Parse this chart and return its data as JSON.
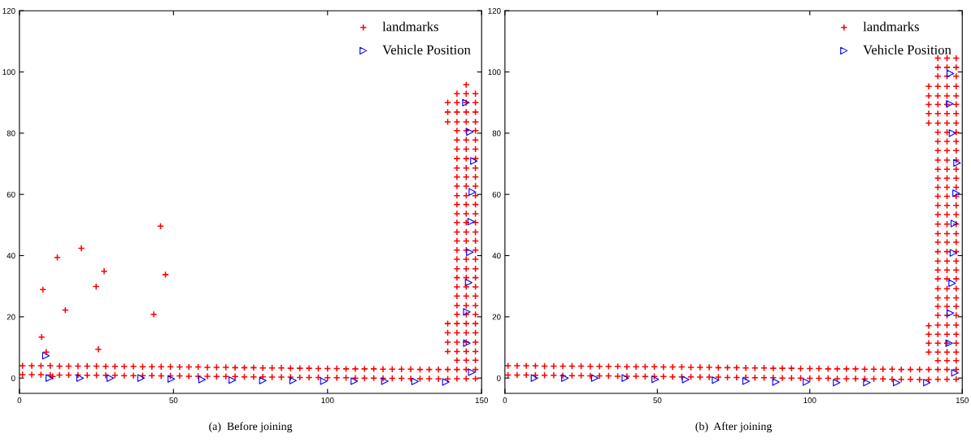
{
  "chart_data": [
    {
      "type": "scatter",
      "annotations": [
        "(a)  Before joining"
      ],
      "xlim": [
        0,
        150
      ],
      "ylim": [
        -5,
        120
      ],
      "xticks": [
        0,
        50,
        100,
        150
      ],
      "yticks": [
        0,
        20,
        40,
        60,
        80,
        100,
        120
      ],
      "grid": false,
      "legend": "top right",
      "series": [
        {
          "name": "landmarks",
          "color": "#ff0000",
          "marker": "cross",
          "x": [
            1,
            4,
            7,
            10,
            13,
            16,
            19,
            22,
            25,
            28,
            31,
            34,
            37,
            40,
            43,
            46,
            49,
            52,
            55,
            58,
            61,
            64,
            67,
            70,
            73,
            76,
            79,
            82,
            85,
            88,
            91,
            94,
            97,
            100,
            103,
            106,
            109,
            112,
            115,
            118,
            121,
            124,
            127,
            130,
            133,
            136,
            139,
            1,
            4,
            7,
            10,
            13,
            16,
            19,
            22,
            25,
            28,
            31,
            34,
            37,
            40,
            43,
            46,
            49,
            52,
            55,
            58,
            61,
            64,
            67,
            70,
            73,
            76,
            79,
            82,
            85,
            88,
            91,
            94,
            97,
            100,
            103,
            106,
            109,
            112,
            115,
            118,
            121,
            124,
            127,
            130,
            133,
            136,
            139,
            139,
            139,
            139,
            139,
            139,
            139,
            139,
            142,
            142,
            142,
            142,
            142,
            142,
            142,
            142,
            142,
            142,
            142,
            142,
            142,
            142,
            142,
            142,
            142,
            142,
            142,
            142,
            142,
            142,
            142,
            142,
            142,
            142,
            142,
            142,
            142,
            142,
            142,
            142,
            145,
            145,
            145,
            145,
            145,
            145,
            145,
            145,
            145,
            145,
            145,
            145,
            145,
            145,
            145,
            145,
            145,
            145,
            145,
            145,
            145,
            145,
            145,
            145,
            145,
            145,
            145,
            145,
            145,
            145,
            145,
            145,
            145,
            148,
            148,
            148,
            148,
            148,
            148,
            148,
            148,
            148,
            148,
            148,
            148,
            148,
            148,
            148,
            148,
            148,
            148,
            148,
            148,
            148,
            148,
            148,
            148,
            148,
            148,
            148,
            148,
            148,
            148,
            148,
            148,
            7.6,
            12.3,
            20.1,
            27.5,
            24.9,
            14.9,
            7.2,
            8.7,
            25.6,
            43.6,
            45.8,
            47.4,
            10.8
          ],
          "values": [
            4.0,
            4.0,
            4.0,
            4.0,
            3.9,
            3.9,
            3.9,
            3.9,
            3.9,
            3.8,
            3.8,
            3.8,
            3.8,
            3.7,
            3.7,
            3.7,
            3.7,
            3.6,
            3.6,
            3.6,
            3.5,
            3.5,
            3.5,
            3.4,
            3.4,
            3.4,
            3.3,
            3.3,
            3.3,
            3.2,
            3.2,
            3.2,
            3.1,
            3.1,
            3.1,
            3.0,
            3.0,
            3.0,
            3.0,
            2.9,
            2.9,
            2.9,
            2.9,
            2.8,
            2.8,
            2.8,
            2.8,
            1.1,
            1.1,
            1.1,
            1.0,
            1.0,
            1.0,
            1.0,
            0.9,
            0.9,
            0.9,
            0.9,
            0.8,
            0.8,
            0.8,
            0.8,
            0.7,
            0.7,
            0.7,
            0.6,
            0.6,
            0.6,
            0.5,
            0.5,
            0.5,
            0.4,
            0.4,
            0.4,
            0.3,
            0.3,
            0.3,
            0.2,
            0.2,
            0.2,
            0.1,
            0.1,
            0.1,
            0.0,
            0.0,
            0.0,
            -0.1,
            -0.1,
            -0.1,
            -0.2,
            -0.2,
            -0.2,
            -0.3,
            -0.3,
            8.7,
            11.7,
            14.8,
            17.8,
            83.7,
            86.9,
            90.0,
            -0.2,
            2.8,
            5.8,
            8.7,
            11.7,
            14.8,
            17.8,
            20.8,
            23.7,
            26.8,
            29.8,
            32.8,
            35.7,
            38.8,
            41.8,
            44.8,
            47.7,
            50.8,
            53.7,
            56.7,
            59.6,
            62.7,
            65.7,
            68.6,
            71.7,
            74.8,
            77.8,
            80.8,
            83.7,
            86.9,
            90.0,
            92.9,
            -0.2,
            2.8,
            5.8,
            8.7,
            11.7,
            14.8,
            17.8,
            20.8,
            23.7,
            26.8,
            29.8,
            32.8,
            35.7,
            38.8,
            41.8,
            44.8,
            47.7,
            50.8,
            53.7,
            56.7,
            59.6,
            62.7,
            65.7,
            68.6,
            71.7,
            74.8,
            77.8,
            80.8,
            83.7,
            86.9,
            90.0,
            92.9,
            95.8,
            -0.2,
            2.8,
            5.8,
            8.7,
            11.7,
            14.8,
            17.8,
            20.8,
            23.7,
            26.8,
            29.8,
            32.8,
            35.7,
            38.8,
            41.8,
            44.8,
            47.7,
            50.8,
            53.7,
            56.7,
            59.6,
            62.7,
            65.7,
            68.6,
            71.7,
            74.8,
            77.8,
            80.8,
            83.7,
            86.9,
            90.0,
            92.9,
            28.9,
            39.4,
            42.4,
            34.9,
            29.9,
            22.2,
            13.4,
            8.5,
            9.4,
            20.8,
            49.6,
            33.8,
            0.5
          ]
        },
        {
          "name": "Vehicle Position",
          "color": "#0000ff",
          "marker": "triangle",
          "x": [
            8.6,
            9.7,
            19.7,
            29.5,
            39.5,
            49.3,
            59.3,
            69.1,
            79.0,
            88.8,
            98.8,
            108.7,
            118.6,
            128.4,
            138.4,
            146.8,
            145.2,
            145.2,
            145.8,
            146.2,
            146.6,
            147.0,
            147.5,
            146.2,
            144.9
          ],
          "values": [
            7.3,
            0.0,
            0.0,
            0.0,
            0.0,
            -0.3,
            -0.5,
            -0.7,
            -0.8,
            -0.8,
            -1.0,
            -1.0,
            -1.0,
            -1.1,
            -1.3,
            1.9,
            11.4,
            21.6,
            31.2,
            41.1,
            51.1,
            60.8,
            70.9,
            80.4,
            90.0
          ]
        }
      ]
    },
    {
      "type": "scatter",
      "annotations": [
        "(b)  After joining"
      ],
      "xlim": [
        0,
        150
      ],
      "ylim": [
        -5,
        120
      ],
      "xticks": [
        0,
        50,
        100,
        150
      ],
      "yticks": [
        0,
        20,
        40,
        60,
        80,
        100,
        120
      ],
      "grid": false,
      "legend": "top right",
      "series": [
        {
          "name": "landmarks",
          "color": "#ff0000",
          "marker": "cross",
          "x": [
            1,
            4,
            7,
            10,
            13,
            16,
            19,
            22,
            25,
            28,
            31,
            34,
            37,
            40,
            43,
            46,
            49,
            52,
            55,
            58,
            61,
            64,
            67,
            70,
            73,
            76,
            79,
            82,
            85,
            88,
            91,
            94,
            97,
            100,
            103,
            106,
            109,
            112,
            115,
            118,
            121,
            124,
            127,
            130,
            133,
            136,
            139,
            1,
            4,
            7,
            10,
            13,
            16,
            19,
            22,
            25,
            28,
            31,
            34,
            37,
            40,
            43,
            46,
            49,
            52,
            55,
            58,
            61,
            64,
            67,
            70,
            73,
            76,
            79,
            82,
            85,
            88,
            91,
            94,
            97,
            100,
            103,
            106,
            109,
            112,
            115,
            118,
            121,
            124,
            127,
            130,
            133,
            136,
            139,
            139,
            139,
            139,
            139,
            139,
            139,
            139,
            139,
            139,
            142,
            142,
            142,
            142,
            142,
            142,
            142,
            142,
            142,
            142,
            142,
            142,
            142,
            142,
            142,
            142,
            142,
            142,
            142,
            142,
            142,
            142,
            142,
            142,
            142,
            142,
            142,
            142,
            142,
            142,
            142,
            142,
            142,
            142,
            142,
            142,
            145,
            145,
            145,
            145,
            145,
            145,
            145,
            145,
            145,
            145,
            145,
            145,
            145,
            145,
            145,
            145,
            145,
            145,
            145,
            145,
            145,
            145,
            145,
            145,
            145,
            145,
            145,
            145,
            145,
            145,
            145,
            145,
            145,
            145,
            145,
            145,
            148,
            148,
            148,
            148,
            148,
            148,
            148,
            148,
            148,
            148,
            148,
            148,
            148,
            148,
            148,
            148,
            148,
            148,
            148,
            148,
            148,
            148,
            148,
            148,
            148,
            148,
            148,
            148,
            148,
            148,
            148,
            148,
            148,
            148,
            148,
            148
          ],
          "values": [
            4.0,
            4.0,
            4.0,
            4.0,
            3.9,
            3.9,
            3.9,
            3.9,
            3.9,
            3.8,
            3.8,
            3.8,
            3.8,
            3.7,
            3.7,
            3.7,
            3.7,
            3.6,
            3.6,
            3.6,
            3.5,
            3.5,
            3.5,
            3.4,
            3.4,
            3.4,
            3.3,
            3.3,
            3.3,
            3.2,
            3.2,
            3.2,
            3.1,
            3.1,
            3.1,
            3.0,
            3.0,
            3.0,
            3.0,
            2.9,
            2.9,
            2.9,
            2.9,
            2.8,
            2.8,
            2.8,
            2.8,
            1.0,
            1.0,
            1.0,
            0.9,
            0.9,
            0.9,
            0.8,
            0.8,
            0.8,
            0.7,
            0.7,
            0.7,
            0.6,
            0.6,
            0.6,
            0.5,
            0.5,
            0.5,
            0.4,
            0.4,
            0.4,
            0.3,
            0.3,
            0.3,
            0.2,
            0.2,
            0.2,
            0.1,
            0.1,
            0.1,
            0.0,
            0.0,
            0.0,
            -0.1,
            -0.1,
            -0.1,
            -0.2,
            -0.2,
            -0.2,
            -0.3,
            -0.3,
            -0.3,
            -0.4,
            -0.4,
            -0.4,
            -0.5,
            -0.5,
            8.5,
            11.4,
            14.3,
            17.1,
            83.3,
            86.4,
            89.4,
            92.2,
            95.3,
            -0.4,
            2.8,
            5.7,
            8.5,
            11.4,
            14.3,
            17.3,
            20.5,
            23.4,
            26.2,
            29.2,
            32.4,
            35.3,
            38.2,
            41.3,
            44.4,
            47.2,
            50.3,
            53.4,
            56.4,
            59.4,
            62.3,
            65.3,
            68.2,
            71.2,
            74.3,
            77.3,
            80.3,
            83.3,
            86.4,
            89.4,
            92.2,
            95.3,
            98.6,
            101.5,
            104.5,
            -0.4,
            2.8,
            5.7,
            8.5,
            11.4,
            14.3,
            17.3,
            20.5,
            23.4,
            26.2,
            29.2,
            32.4,
            35.3,
            38.2,
            41.3,
            44.4,
            47.2,
            50.3,
            53.4,
            56.4,
            59.4,
            62.3,
            65.3,
            68.2,
            71.2,
            74.3,
            77.3,
            80.3,
            83.3,
            86.4,
            89.4,
            92.2,
            95.3,
            98.6,
            101.5,
            104.5,
            -0.4,
            2.8,
            5.7,
            8.5,
            11.4,
            14.3,
            17.3,
            20.5,
            23.4,
            26.2,
            29.2,
            32.4,
            35.3,
            38.2,
            41.3,
            44.4,
            47.2,
            50.3,
            53.4,
            56.4,
            59.4,
            62.3,
            65.3,
            68.2,
            71.2,
            74.3,
            77.3,
            80.3,
            83.3,
            86.4,
            89.4,
            92.2,
            95.3,
            98.6,
            101.5,
            104.5
          ]
        },
        {
          "name": "Vehicle Position",
          "color": "#0000ff",
          "marker": "triangle",
          "x": [
            9.7,
            19.7,
            29.5,
            39.5,
            49.3,
            59.3,
            69.1,
            79.1,
            88.9,
            98.9,
            108.8,
            118.7,
            128.5,
            138.4,
            147.6,
            145.7,
            146.1,
            146.7,
            147.1,
            147.4,
            148.0,
            148.3,
            146.8,
            145.9,
            146.1
          ],
          "values": [
            0.0,
            0.0,
            0.0,
            0.0,
            -0.4,
            -0.5,
            -0.7,
            -1.0,
            -1.3,
            -1.3,
            -1.5,
            -1.5,
            -1.5,
            -1.5,
            1.7,
            11.4,
            21.2,
            31.0,
            40.9,
            50.5,
            60.4,
            70.3,
            80.0,
            89.6,
            99.5
          ]
        }
      ]
    }
  ]
}
